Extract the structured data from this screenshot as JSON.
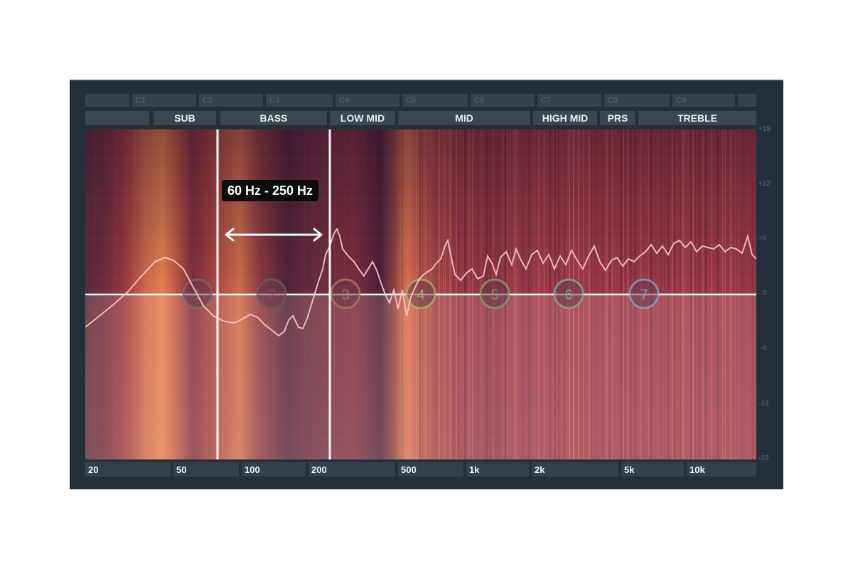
{
  "note_labels": [
    "",
    "C1",
    "C2",
    "C3",
    "C4",
    "C5",
    "C6",
    "C7",
    "C8",
    "C9",
    ""
  ],
  "bands": [
    "",
    "SUB",
    "BASS",
    "LOW MID",
    "MID",
    "HIGH MID",
    "PRS",
    "TREBLE"
  ],
  "db_scale": [
    "+18",
    "+12",
    "+6",
    "0",
    "-6",
    "-12",
    "-18"
  ],
  "freq_labels": [
    "20",
    "50",
    "100",
    "200",
    "500",
    "1k",
    "2k",
    "5k",
    "10k"
  ],
  "eq_nodes": [
    "1",
    "2",
    "3",
    "4",
    "5",
    "6",
    "7"
  ],
  "highlight": {
    "label": "60 Hz - 250 Hz",
    "low_hz": 60,
    "high_hz": 250
  },
  "colors": {
    "panel": "#243039",
    "accent_line": "#ffffff"
  },
  "icons": {
    "range": "double-arrow-icon"
  }
}
